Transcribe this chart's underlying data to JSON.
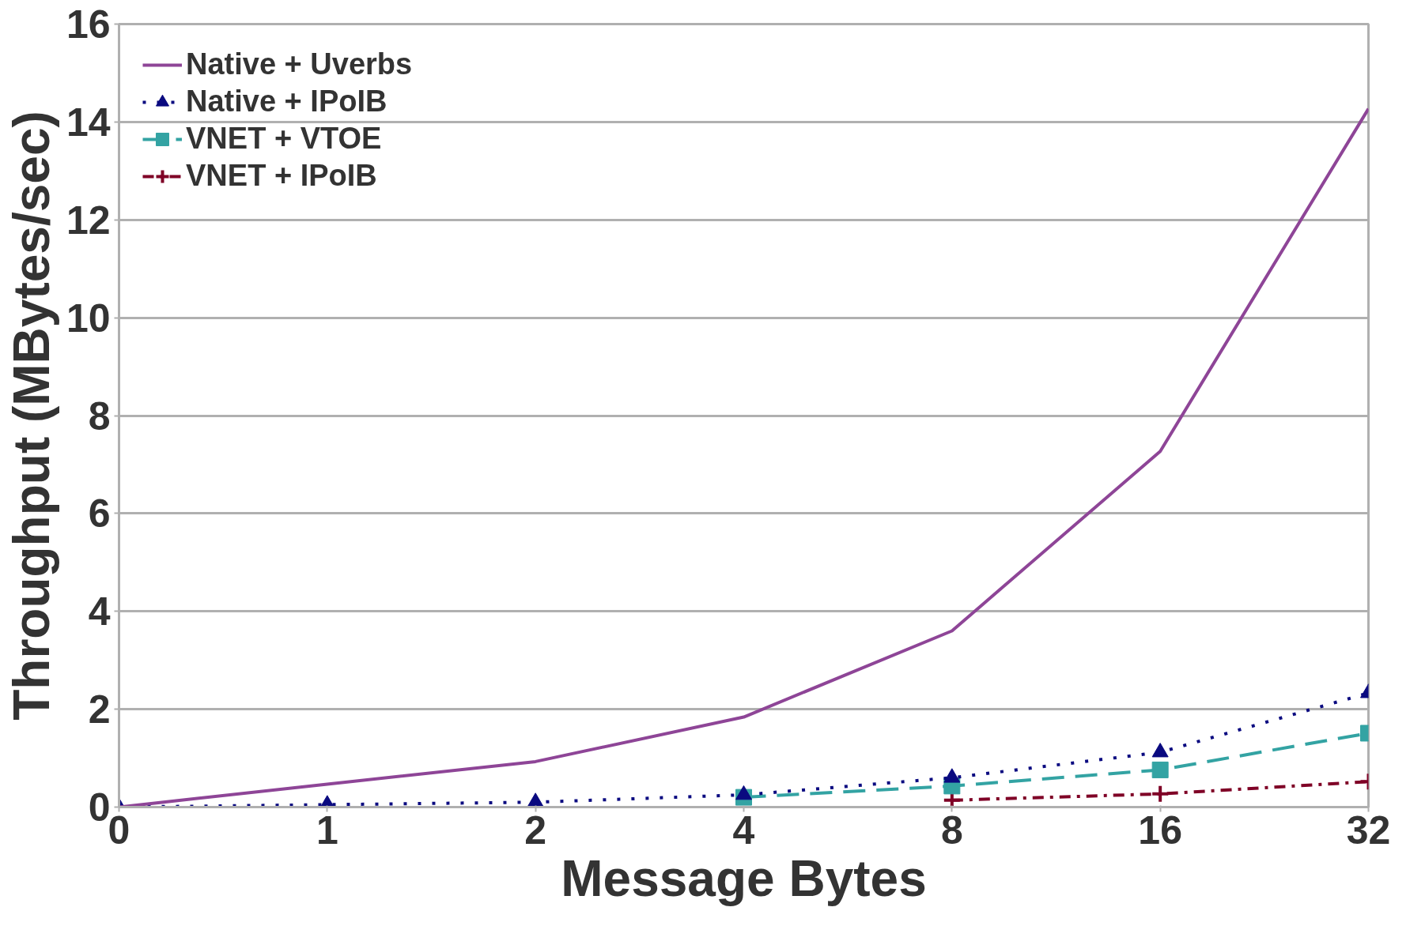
{
  "chart_data": {
    "type": "line",
    "xlabel": "Message Bytes",
    "ylabel": "Throughput (MBytes/sec)",
    "categories": [
      "0",
      "1",
      "2",
      "4",
      "8",
      "16",
      "32"
    ],
    "ylim": [
      0,
      16
    ],
    "yticks": [
      0,
      2,
      4,
      6,
      8,
      10,
      12,
      14,
      16
    ],
    "grid": "y",
    "legend": "top left",
    "series": [
      {
        "name": "Native + Uverbs",
        "color": "#8e4597",
        "marker": "none",
        "line_style": "solid",
        "values": [
          0,
          0.47,
          0.93,
          1.84,
          3.6,
          7.27,
          14.27
        ]
      },
      {
        "name": "Native + IPoIB",
        "color": "#0a0a80",
        "marker": "triangle",
        "line_style": "dotted",
        "values": [
          0,
          0.05,
          0.1,
          0.25,
          0.6,
          1.12,
          2.33
        ]
      },
      {
        "name": "VNET + VTOE",
        "color": "#33a3a3",
        "marker": "square",
        "line_style": "dashed",
        "values": [
          null,
          null,
          null,
          0.2,
          0.43,
          0.76,
          1.51
        ]
      },
      {
        "name": "VNET + IPoIB",
        "color": "#7f0026",
        "marker": "cross",
        "line_style": "dashdot",
        "values": [
          null,
          null,
          null,
          null,
          0.14,
          0.27,
          0.52
        ]
      }
    ]
  }
}
